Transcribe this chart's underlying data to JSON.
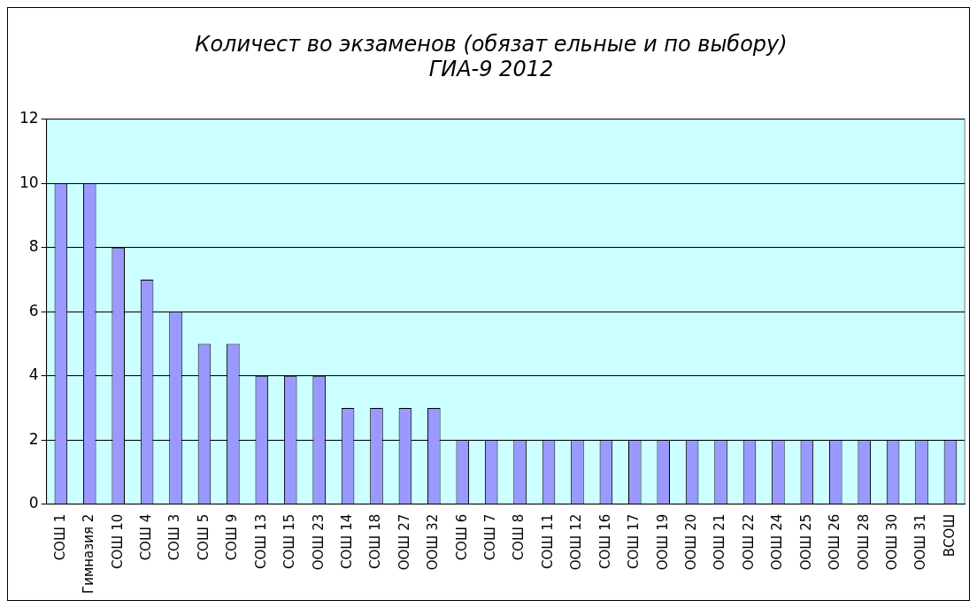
{
  "chart_data": {
    "type": "bar",
    "title": "Количест во экзаменов (обязат ельные и по выбору)\nГИА-9 2012",
    "categories": [
      "СОШ 1",
      "Гимназия 2",
      "СОШ 10",
      "СОШ 4",
      "СОШ 3",
      "СОШ 5",
      "СОШ 9",
      "СОШ 13",
      "СОШ 15",
      "ООШ 23",
      "СОШ 14",
      "СОШ 18",
      "ООШ 27",
      "ООШ 32",
      "СОШ 6",
      "СОШ 7",
      "СОШ 8",
      "СОШ 11",
      "ООШ 12",
      "СОШ 16",
      "СОШ 17",
      "ООШ 19",
      "ООШ 20",
      "ООШ 21",
      "ООШ 22",
      "ООШ 24",
      "ООШ 25",
      "ООШ 26",
      "ООШ 28",
      "ООШ 30",
      "ООШ 31",
      "ВСОШ"
    ],
    "values": [
      10,
      10,
      8,
      7,
      6,
      5,
      5,
      4,
      4,
      4,
      3,
      3,
      3,
      3,
      2,
      2,
      2,
      2,
      2,
      2,
      2,
      2,
      2,
      2,
      2,
      2,
      2,
      2,
      2,
      2,
      2,
      2
    ],
    "color": "#9999ff",
    "ylim": [
      0,
      12
    ],
    "yticks": [
      0,
      2,
      4,
      6,
      8,
      10,
      12
    ],
    "grid": "y",
    "legend": false
  }
}
